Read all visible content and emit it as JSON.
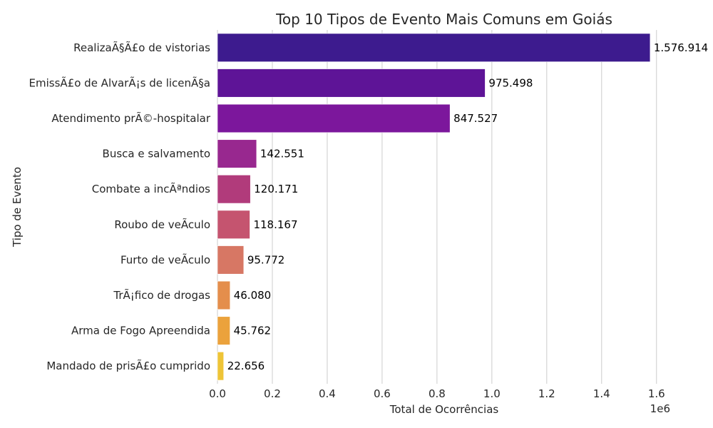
{
  "chart_data": {
    "type": "bar",
    "orientation": "horizontal",
    "title": "Top 10 Tipos de Evento Mais Comuns em Goiás",
    "xlabel": "Total de Ocorrências",
    "ylabel": "Tipo de Evento",
    "x_offset_label": "1e6",
    "xlim": [
      0,
      1.65
    ],
    "xticks": [
      0.0,
      0.2,
      0.4,
      0.6,
      0.8,
      1.0,
      1.2,
      1.4,
      1.6
    ],
    "xtick_labels": [
      "0.0",
      "0.2",
      "0.4",
      "0.6",
      "0.8",
      "1.0",
      "1.2",
      "1.4",
      "1.6"
    ],
    "grid": true,
    "categories": [
      "RealizaÃ§Ã£o de vistorias",
      "EmissÃ£o de AlvarÃ¡s de licenÃ§a",
      "Atendimento prÃ©-hospitalar",
      "Busca e salvamento",
      "Combate a incÃªndios",
      "Roubo de veÃ­culo",
      "Furto de veÃ­culo",
      "TrÃ¡fico de drogas",
      "Arma de Fogo Apreendida",
      "Mandado de prisÃ£o cumprido"
    ],
    "values": [
      1576914,
      975498,
      847527,
      142551,
      120171,
      118167,
      95772,
      46080,
      45762,
      22656
    ],
    "value_labels": [
      "1.576.914",
      "975.498",
      "847.527",
      "142.551",
      "120.171",
      "118.167",
      "95.772",
      "46.080",
      "45.762",
      "22.656"
    ],
    "colors": [
      "#3d1b8e",
      "#5e1497",
      "#7c179c",
      "#98288f",
      "#b13b7b",
      "#c5546f",
      "#d77764",
      "#e48e4c",
      "#eba23c",
      "#eec437"
    ]
  }
}
